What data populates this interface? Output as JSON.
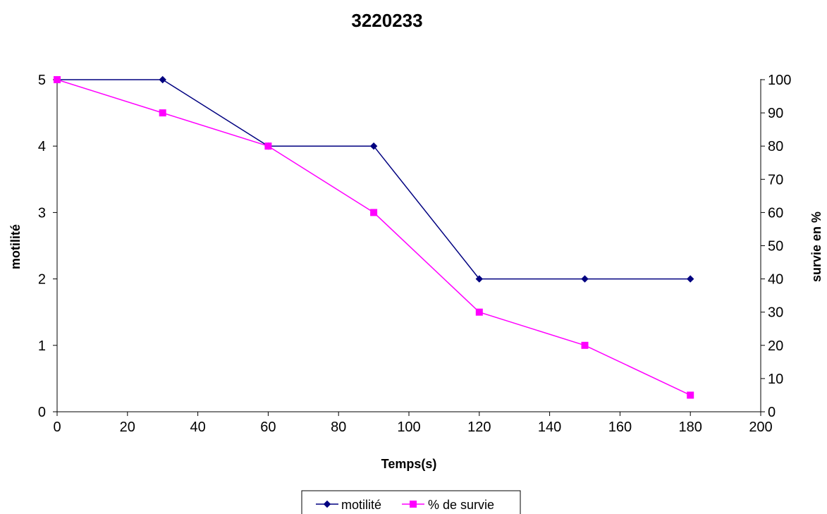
{
  "chart_data": {
    "type": "line",
    "title": "3220233",
    "xlabel": "Temps(s)",
    "ylabel": "motilité",
    "y2label": "survie en %",
    "xlim": [
      0,
      200
    ],
    "ylim": [
      0,
      5
    ],
    "y2lim": [
      0,
      100
    ],
    "x_ticks": [
      0,
      20,
      40,
      60,
      80,
      100,
      120,
      140,
      160,
      180,
      200
    ],
    "y_ticks": [
      0,
      1,
      2,
      3,
      4,
      5
    ],
    "y2_ticks": [
      0,
      10,
      20,
      30,
      40,
      50,
      60,
      70,
      80,
      90,
      100
    ],
    "grid": false,
    "legend_position": "bottom",
    "series": [
      {
        "name": "motilité",
        "axis": "left",
        "color": "#000080",
        "marker": "diamond",
        "x": [
          0,
          30,
          60,
          90,
          120,
          150,
          180
        ],
        "y": [
          5,
          5,
          4,
          4,
          2,
          2,
          2
        ]
      },
      {
        "name": "% de survie",
        "axis": "right",
        "color": "#FF00FF",
        "marker": "square",
        "x": [
          0,
          30,
          60,
          90,
          120,
          150,
          180
        ],
        "y": [
          100,
          90,
          80,
          60,
          30,
          20,
          5
        ]
      }
    ]
  }
}
